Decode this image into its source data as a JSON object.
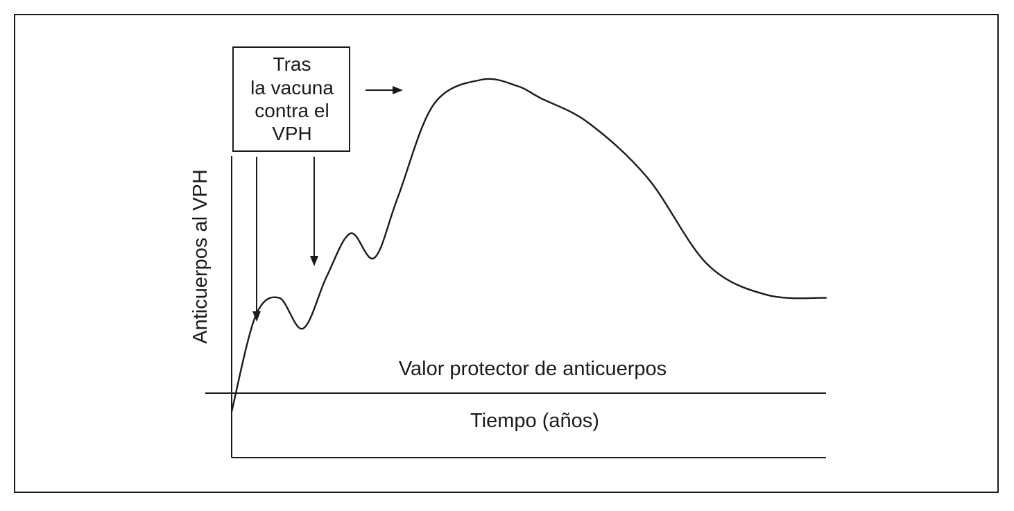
{
  "chart_data": {
    "type": "line",
    "title": "",
    "xlabel": "Tiempo (años)",
    "ylabel": "Anticuerpos al VPH",
    "xticks": [],
    "yticks": [],
    "grid": false,
    "legend": "none",
    "threshold_label": "Valor protector de anticuerpos",
    "annotation": {
      "lines": [
        "Tras",
        "la vacuna",
        "contra el",
        "VPH"
      ]
    },
    "line_color": "#1a1a1a",
    "series": [
      {
        "x": [
          0,
          4,
          8,
          12,
          16,
          20,
          24,
          28,
          34,
          42,
          48,
          52,
          60,
          70,
          80,
          90,
          100
        ],
        "y": [
          -0.3,
          1.25,
          1.55,
          1.05,
          1.9,
          2.6,
          2.2,
          3.2,
          4.7,
          5.1,
          5.0,
          4.8,
          4.4,
          3.5,
          2.1,
          1.6,
          1.55
        ]
      }
    ]
  }
}
